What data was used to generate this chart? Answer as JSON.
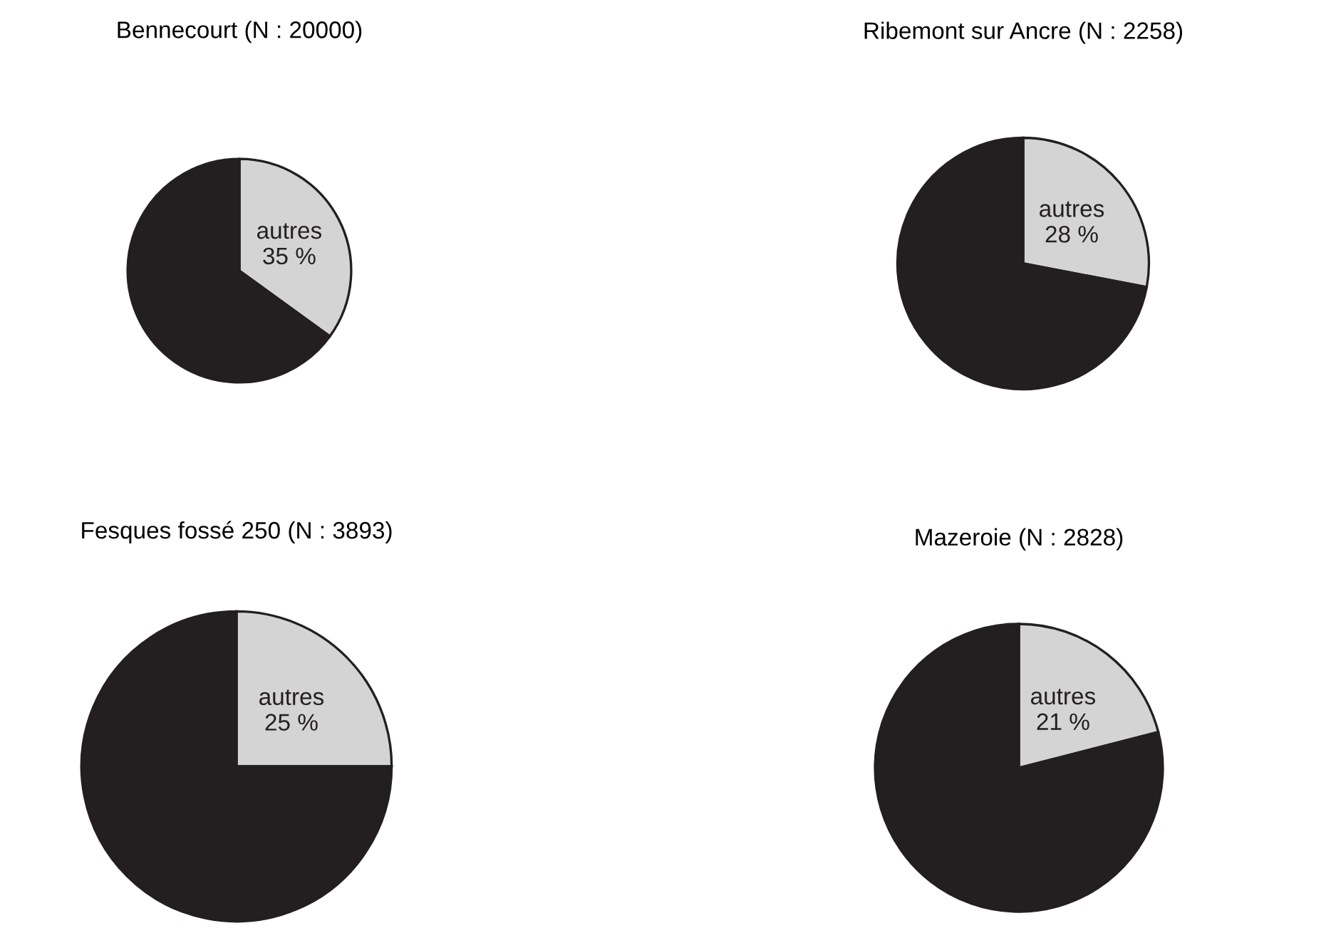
{
  "chart_data": [
    {
      "type": "pie",
      "title": "Bennecourt (N : 20000)",
      "categories": [
        "autres",
        null
      ],
      "values": [
        35,
        65
      ],
      "colors": [
        "#d4d4d4",
        "#231f20"
      ],
      "value_labels": [
        "35 %",
        null
      ]
    },
    {
      "type": "pie",
      "title": "Ribemont sur Ancre (N : 2258)",
      "categories": [
        "autres",
        null
      ],
      "values": [
        28,
        72
      ],
      "colors": [
        "#d4d4d4",
        "#231f20"
      ],
      "value_labels": [
        "28 %",
        null
      ]
    },
    {
      "type": "pie",
      "title": "Fesques fossé 250 (N : 3893)",
      "categories": [
        "autres",
        null
      ],
      "values": [
        25,
        75
      ],
      "colors": [
        "#d4d4d4",
        "#231f20"
      ],
      "value_labels": [
        "25 %",
        null
      ]
    },
    {
      "type": "pie",
      "title": "Mazeroie (N : 2828)",
      "categories": [
        "autres",
        null
      ],
      "values": [
        21,
        79
      ],
      "colors": [
        "#d4d4d4",
        "#231f20"
      ],
      "value_labels": [
        "21 %",
        null
      ]
    }
  ]
}
